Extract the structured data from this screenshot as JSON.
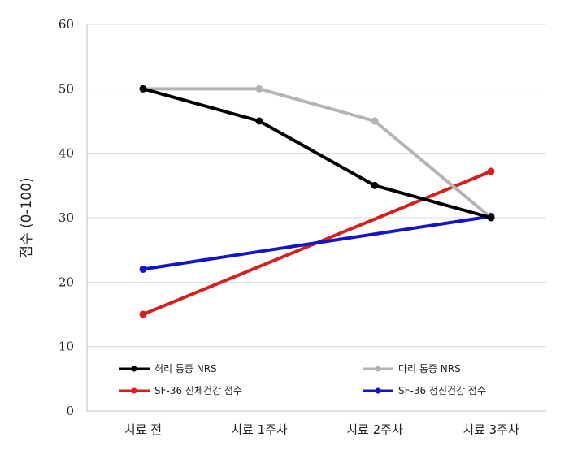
{
  "chart_data": {
    "type": "line",
    "title": "",
    "xlabel": "",
    "ylabel": "점수 (0-100)",
    "categories": [
      "치료 전",
      "치료 1주차",
      "치료 2주차",
      "치료 3주차"
    ],
    "ylim": [
      0,
      60
    ],
    "yticks": [
      0,
      10,
      20,
      30,
      40,
      50,
      60
    ],
    "grid": true,
    "legend_position": "bottom",
    "series": [
      {
        "name": "허리 통증 NRS",
        "color": "#000000",
        "values": [
          50,
          45,
          35,
          30
        ]
      },
      {
        "name": "다리 통증 NRS",
        "color": "#b4b4b4",
        "values": [
          50,
          50,
          45,
          30
        ]
      },
      {
        "name": "SF-36 신체건강 점수",
        "color": "#d61f1f",
        "values": [
          15,
          null,
          null,
          37.2
        ]
      },
      {
        "name": "SF-36 정신건강 점수",
        "color": "#1414c8",
        "values": [
          22,
          null,
          null,
          30.2
        ]
      }
    ]
  }
}
